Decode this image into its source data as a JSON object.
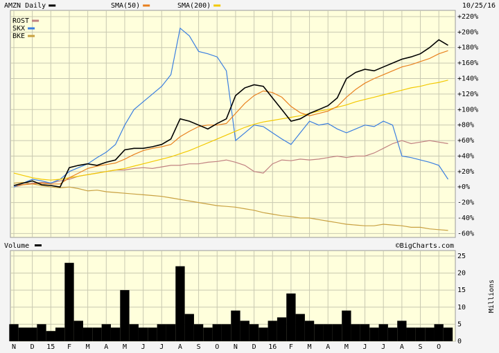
{
  "chart_data": [
    {
      "type": "line",
      "date": "10/25/16",
      "categories": [
        "N",
        null,
        "D",
        null,
        "15",
        null,
        "F",
        null,
        "M",
        null,
        "A",
        null,
        "M",
        null,
        "J",
        null,
        "J",
        null,
        "A",
        null,
        "S",
        null,
        "O",
        null,
        "N",
        null,
        "D",
        null,
        "16",
        null,
        "F",
        null,
        "M",
        null,
        "A",
        null,
        "M",
        null,
        "J",
        null,
        "J",
        null,
        "A",
        null,
        "S",
        null,
        "O",
        null
      ],
      "series": [
        {
          "name": "AMZN Daily",
          "color": "#000000",
          "values": [
            2,
            5,
            8,
            3,
            2,
            0,
            25,
            28,
            30,
            28,
            32,
            35,
            48,
            50,
            50,
            52,
            55,
            62,
            88,
            85,
            80,
            75,
            82,
            88,
            118,
            128,
            132,
            130,
            115,
            100,
            85,
            88,
            95,
            100,
            105,
            115,
            140,
            148,
            152,
            150,
            155,
            160,
            165,
            168,
            172,
            180,
            190,
            183
          ]
        },
        {
          "name": "SMA(50)",
          "color": "#e8801e",
          "values": [
            2,
            3,
            4,
            5,
            4,
            4,
            12,
            18,
            24,
            27,
            29,
            31,
            36,
            42,
            47,
            50,
            52,
            55,
            65,
            72,
            78,
            80,
            80,
            82,
            95,
            108,
            118,
            124,
            122,
            116,
            104,
            96,
            92,
            95,
            98,
            104,
            116,
            126,
            134,
            140,
            145,
            150,
            155,
            158,
            162,
            166,
            172,
            176
          ]
        },
        {
          "name": "SMA(200)",
          "color": "#f2c800",
          "values": [
            18,
            15,
            12,
            10,
            9,
            10,
            12,
            14,
            16,
            18,
            20,
            22,
            24,
            27,
            30,
            33,
            36,
            39,
            43,
            47,
            52,
            57,
            62,
            67,
            72,
            77,
            81,
            84,
            86,
            88,
            90,
            92,
            95,
            98,
            100,
            103,
            106,
            110,
            113,
            116,
            119,
            122,
            125,
            128,
            130,
            133,
            135,
            138
          ]
        },
        {
          "name": "ROST",
          "color": "#c08080",
          "values": [
            0,
            3,
            5,
            6,
            5,
            8,
            10,
            14,
            16,
            18,
            20,
            22,
            22,
            24,
            25,
            24,
            26,
            28,
            28,
            30,
            30,
            32,
            33,
            35,
            32,
            28,
            20,
            18,
            30,
            35,
            34,
            36,
            35,
            36,
            38,
            40,
            38,
            40,
            40,
            44,
            50,
            56,
            60,
            56,
            58,
            60,
            58,
            56
          ]
        },
        {
          "name": "SKX",
          "color": "#3a7ee0",
          "values": [
            0,
            5,
            10,
            8,
            5,
            10,
            20,
            25,
            30,
            38,
            45,
            55,
            80,
            100,
            110,
            120,
            130,
            145,
            205,
            195,
            175,
            172,
            168,
            150,
            60,
            70,
            80,
            78,
            70,
            62,
            55,
            70,
            85,
            80,
            82,
            75,
            70,
            75,
            80,
            78,
            85,
            80,
            40,
            38,
            35,
            32,
            28,
            10
          ]
        },
        {
          "name": "BKE",
          "color": "#c8a040",
          "values": [
            5,
            6,
            4,
            2,
            0,
            -1,
            0,
            -2,
            -5,
            -4,
            -6,
            -7,
            -8,
            -9,
            -10,
            -11,
            -12,
            -14,
            -16,
            -18,
            -20,
            -22,
            -24,
            -25,
            -26,
            -28,
            -30,
            -33,
            -35,
            -37,
            -38,
            -40,
            -40,
            -42,
            -44,
            -46,
            -48,
            -49,
            -50,
            -50,
            -48,
            -49,
            -50,
            -52,
            -52,
            -54,
            -55,
            -56
          ]
        }
      ],
      "ylim": [
        -65,
        228
      ],
      "yticks": [
        {
          "value": 220,
          "label": "+220%"
        },
        {
          "value": 200,
          "label": "+200%"
        },
        {
          "value": 180,
          "label": "+180%"
        },
        {
          "value": 160,
          "label": "+160%"
        },
        {
          "value": 140,
          "label": "+140%"
        },
        {
          "value": 120,
          "label": "+120%"
        },
        {
          "value": 100,
          "label": "+100%"
        },
        {
          "value": 80,
          "label": "+80%"
        },
        {
          "value": 60,
          "label": "+60%"
        },
        {
          "value": 40,
          "label": "+40%"
        },
        {
          "value": 20,
          "label": "+20%"
        },
        {
          "value": 0,
          "label": "+0%"
        },
        {
          "value": -20,
          "label": "-20%"
        },
        {
          "value": -40,
          "label": "-40%"
        },
        {
          "value": -60,
          "label": "-60%"
        }
      ],
      "grid": true
    },
    {
      "type": "bar",
      "title": "Volume",
      "source": "©BigCharts.com",
      "ylabel": "Millions",
      "color": "#000000",
      "values": [
        5,
        4,
        4,
        5,
        3,
        4,
        23,
        6,
        4,
        4,
        5,
        4,
        15,
        5,
        4,
        4,
        5,
        5,
        22,
        8,
        5,
        4,
        5,
        5,
        9,
        6,
        5,
        4,
        6,
        7,
        14,
        8,
        6,
        5,
        5,
        5,
        9,
        5,
        5,
        4,
        5,
        4,
        6,
        4,
        4,
        4,
        5,
        4
      ],
      "ylim": [
        0,
        26.6
      ],
      "yticks": [
        0,
        5,
        10,
        15,
        20,
        25
      ],
      "grid": true
    }
  ]
}
